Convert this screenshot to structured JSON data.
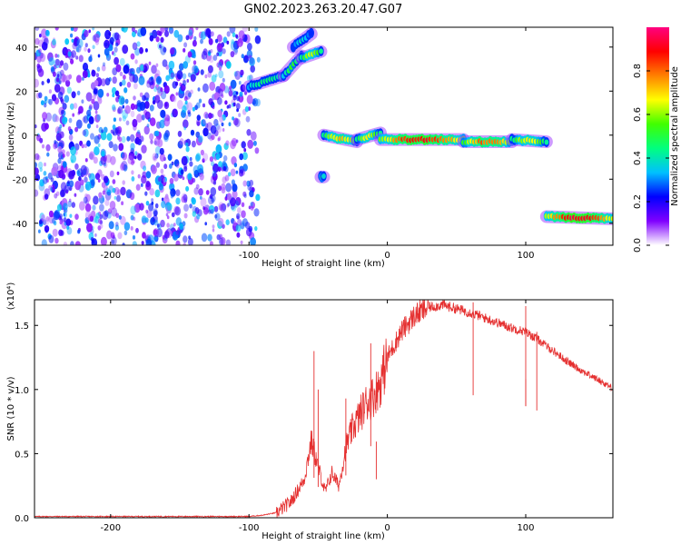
{
  "figure": {
    "title": "GN02.2023.263.20.47.G07"
  },
  "chart_data": [
    {
      "type": "heatmap",
      "xlabel": "Height of straight line (km)",
      "ylabel": "Frequency (Hz)",
      "xlim": [
        -255,
        163
      ],
      "ylim": [
        -50,
        49
      ],
      "xticks": [
        -200,
        -100,
        0,
        100
      ],
      "yticks": [
        -40,
        -20,
        0,
        20,
        40
      ],
      "colorbar": {
        "label": "Normalized spectral amplitude",
        "range": [
          0.0,
          1.0
        ],
        "ticks": [
          0.0,
          0.2,
          0.4,
          0.6,
          0.8
        ],
        "colormap": [
          "#ffffff",
          "#8000ff",
          "#0000ff",
          "#00c0ff",
          "#00ff80",
          "#40ff00",
          "#ffff00",
          "#ff8000",
          "#ff0000",
          "#ff0080"
        ]
      },
      "noise_region": {
        "x": [
          -255,
          -93
        ],
        "y": [
          -50,
          49
        ],
        "amplitude_range": [
          0.05,
          0.35
        ]
      },
      "signal_segments": [
        {
          "x": [
            -100,
            -75
          ],
          "y": [
            22,
            27
          ],
          "amplitude": 0.5
        },
        {
          "x": [
            -75,
            -62
          ],
          "y": [
            27,
            36
          ],
          "amplitude": 0.55
        },
        {
          "x": [
            -68,
            -55
          ],
          "y": [
            40,
            46
          ],
          "amplitude": 0.4
        },
        {
          "x": [
            -62,
            -48
          ],
          "y": [
            35,
            38
          ],
          "amplitude": 0.7
        },
        {
          "x": [
            -46,
            -22
          ],
          "y": [
            0,
            -3
          ],
          "amplitude": 0.75
        },
        {
          "x": [
            -22,
            -5
          ],
          "y": [
            -2,
            1
          ],
          "amplitude": 0.7
        },
        {
          "x": [
            -5,
            55
          ],
          "y": [
            -2,
            -2
          ],
          "amplitude": 0.95
        },
        {
          "x": [
            55,
            90
          ],
          "y": [
            -3,
            -3
          ],
          "amplitude": 0.85
        },
        {
          "x": [
            90,
            115
          ],
          "y": [
            -2,
            -3
          ],
          "amplitude": 0.7
        },
        {
          "x": [
            -48,
            -46
          ],
          "y": [
            -19,
            -19
          ],
          "amplitude": 0.6
        },
        {
          "x": [
            115,
            163
          ],
          "y": [
            -37,
            -38
          ],
          "amplitude": 1.0
        }
      ]
    },
    {
      "type": "line",
      "xlabel": "Height of straight line (km)",
      "ylabel": "SNR (10 * v/v)",
      "y_multiplier": "(x10⁴)",
      "xlim": [
        -255,
        163
      ],
      "ylim": [
        0,
        1.7
      ],
      "xticks": [
        -200,
        -100,
        0,
        100
      ],
      "yticks": [
        0.0,
        0.5,
        1.0,
        1.5
      ],
      "color": "#e53030",
      "series": [
        {
          "x": [
            -255,
            -200,
            -150,
            -100,
            -90,
            -80,
            -70,
            -60,
            -55,
            -50,
            -45,
            -40,
            -35,
            -30,
            -25,
            -20,
            -15,
            -10,
            -5,
            0,
            10,
            20,
            30,
            40,
            50,
            60,
            70,
            80,
            90,
            100,
            110,
            120,
            130,
            140,
            150,
            163
          ],
          "y": [
            0.01,
            0.01,
            0.01,
            0.01,
            0.02,
            0.04,
            0.12,
            0.3,
            0.6,
            0.4,
            0.2,
            0.35,
            0.25,
            0.55,
            0.7,
            0.8,
            0.9,
            0.95,
            1.05,
            1.25,
            1.45,
            1.58,
            1.64,
            1.66,
            1.63,
            1.6,
            1.56,
            1.52,
            1.48,
            1.45,
            1.38,
            1.3,
            1.22,
            1.15,
            1.09,
            1.01
          ]
        }
      ],
      "spikes": [
        {
          "x": -53,
          "y": 1.3
        },
        {
          "x": -50,
          "y": 1.0
        },
        {
          "x": -30,
          "y": 0.93
        },
        {
          "x": -12,
          "y": 1.36
        },
        {
          "x": -8,
          "y": 0.3
        },
        {
          "x": 62,
          "y": 1.68
        },
        {
          "x": 100,
          "y": 1.65
        },
        {
          "x": 100,
          "y": 1.08
        },
        {
          "x": 108,
          "y": 1.45
        }
      ]
    }
  ]
}
